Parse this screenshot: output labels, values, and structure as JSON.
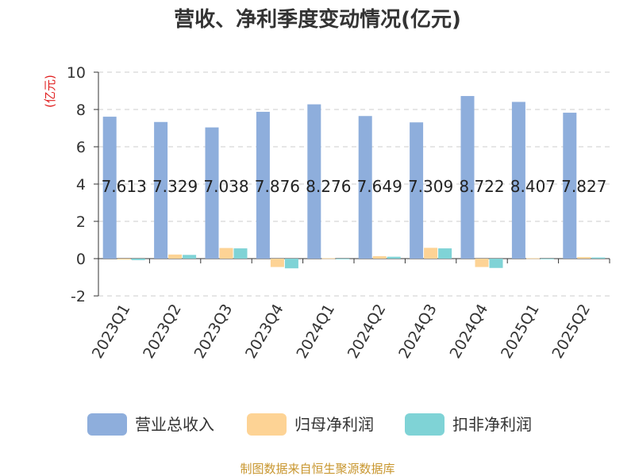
{
  "chart_data": {
    "type": "bar",
    "title": "营收、净利季度变动情况(亿元)",
    "ylabel": "(亿元)",
    "xlabel": "",
    "ylim": [
      -2,
      10
    ],
    "yticks": [
      10,
      8,
      6,
      4,
      2,
      0,
      -2
    ],
    "grid": true,
    "legend_position": "bottom",
    "categories": [
      "2023Q1",
      "2023Q2",
      "2023Q3",
      "2023Q4",
      "2024Q1",
      "2024Q2",
      "2024Q3",
      "2024Q4",
      "2025Q1",
      "2025Q2"
    ],
    "series": [
      {
        "name": "营业总收入",
        "color": "#8eaedc",
        "values": [
          7.613,
          7.329,
          7.038,
          7.876,
          8.276,
          7.649,
          7.309,
          8.722,
          8.407,
          7.827
        ]
      },
      {
        "name": "归母净利润",
        "color": "#fdd395",
        "values": [
          -0.05,
          0.22,
          0.57,
          -0.45,
          0.02,
          0.13,
          0.58,
          -0.45,
          0.02,
          0.08
        ]
      },
      {
        "name": "扣非净利润",
        "color": "#7fd3d6",
        "values": [
          -0.08,
          0.2,
          0.55,
          -0.52,
          -0.02,
          0.1,
          0.55,
          -0.5,
          -0.02,
          0.06
        ]
      }
    ],
    "data_labels": [
      "7.613",
      "7.329",
      "7.038",
      "7.876",
      "8.276",
      "7.649",
      "7.309",
      "8.722",
      "8.407",
      "7.827"
    ]
  },
  "footer": {
    "source": "制图数据来自恒生聚源数据库"
  }
}
